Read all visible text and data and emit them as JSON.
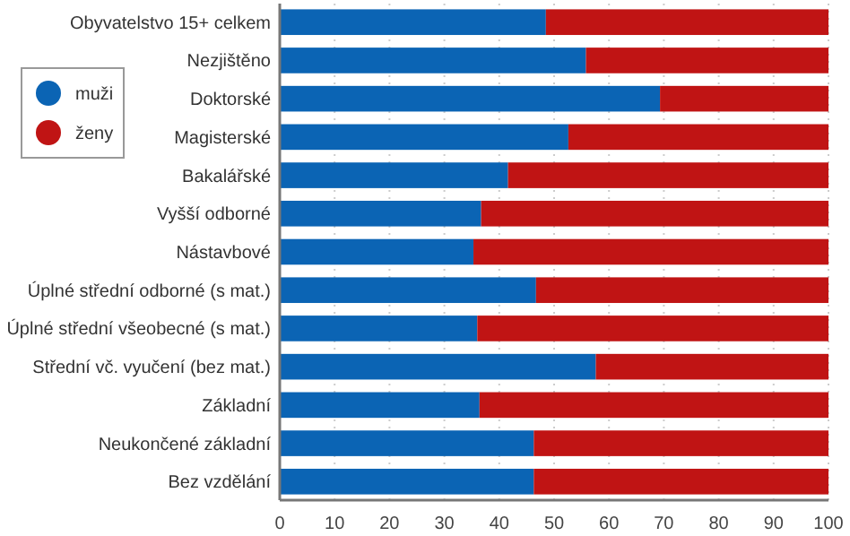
{
  "chart_data": {
    "type": "bar",
    "orientation": "horizontal",
    "stacked": true,
    "categories": [
      "Obyvatelstvo 15+ celkem",
      "Nezjištěno",
      "Doktorské",
      "Magisterské",
      "Bakalářské",
      "Vyšší odborné",
      "Nástavbové",
      "Úplné střední odborné (s mat.)",
      "Úplné střední všeobecné (s mat.)",
      "Střední vč. vyučení (bez mat.)",
      "Základní",
      "Neukončené základní",
      "Bez vzdělání"
    ],
    "series": [
      {
        "name": "muži",
        "color": "#0b64b4",
        "values": [
          48.5,
          55.8,
          69.3,
          52.6,
          41.6,
          36.7,
          35.3,
          46.7,
          36.0,
          57.6,
          36.4,
          46.3,
          46.3
        ]
      },
      {
        "name": "ženy",
        "color": "#c01414",
        "values": [
          51.5,
          44.2,
          30.7,
          47.4,
          58.4,
          63.3,
          64.7,
          53.3,
          64.0,
          42.4,
          63.6,
          53.7,
          53.7
        ]
      }
    ],
    "xlim": [
      0,
      100
    ],
    "xticks": [
      0,
      10,
      20,
      30,
      40,
      50,
      60,
      70,
      80,
      90,
      100
    ],
    "grid": "x",
    "legend": "left"
  }
}
